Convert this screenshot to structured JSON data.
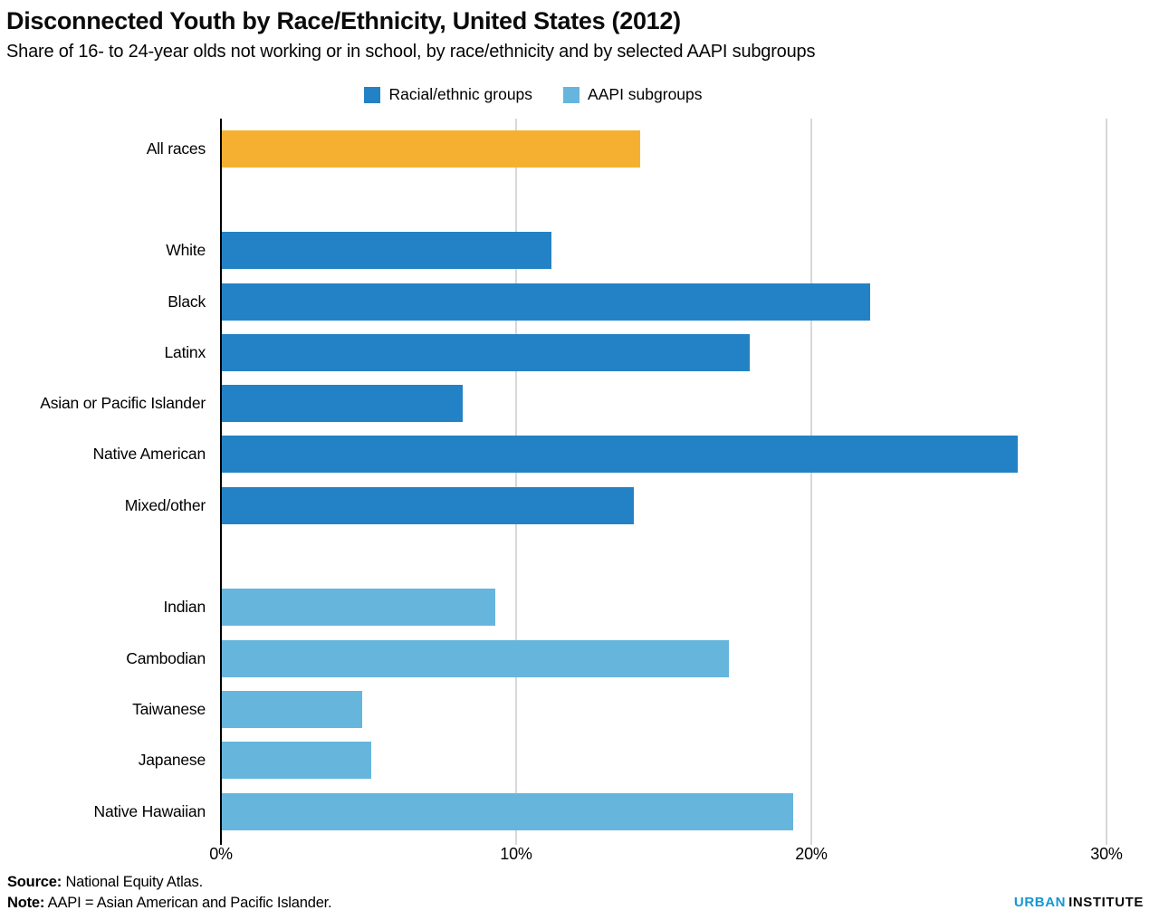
{
  "chart_data": {
    "type": "bar",
    "orientation": "horizontal",
    "title": "Disconnected Youth by Race/Ethnicity, United States (2012)",
    "subtitle": "Share of 16- to 24-year olds not working or in school, by race/ethnicity and by selected AAPI subgroups",
    "xlabel": "",
    "ylabel": "",
    "value_unit": "%",
    "xlim": [
      0,
      30.5
    ],
    "grid": true,
    "x_ticks": [
      {
        "label": "0%",
        "value": 0
      },
      {
        "label": "10%",
        "value": 10
      },
      {
        "label": "20%",
        "value": 20
      },
      {
        "label": "30%",
        "value": 30
      }
    ],
    "legend": {
      "position": "top-center",
      "entries": [
        {
          "label": "Racial/ethnic groups",
          "color": "#2382c5"
        },
        {
          "label": "AAPI subgroups",
          "color": "#66b5dd"
        }
      ]
    },
    "colors": {
      "all": "#f6b031",
      "racial": "#2382c5",
      "aapi": "#66b5dd"
    },
    "rows": [
      {
        "label": "All races",
        "value": 14.2,
        "group": "all",
        "gap_before": false
      },
      {
        "label": "White",
        "value": 11.2,
        "group": "racial",
        "gap_before": true
      },
      {
        "label": "Black",
        "value": 22.0,
        "group": "racial",
        "gap_before": false
      },
      {
        "label": "Latinx",
        "value": 17.9,
        "group": "racial",
        "gap_before": false
      },
      {
        "label": "Asian or Pacific Islander",
        "value": 8.2,
        "group": "racial",
        "gap_before": false
      },
      {
        "label": "Native American",
        "value": 27.0,
        "group": "racial",
        "gap_before": false
      },
      {
        "label": "Mixed/other",
        "value": 14.0,
        "group": "racial",
        "gap_before": false
      },
      {
        "label": "Indian",
        "value": 9.3,
        "group": "aapi",
        "gap_before": true
      },
      {
        "label": "Cambodian",
        "value": 17.2,
        "group": "aapi",
        "gap_before": false
      },
      {
        "label": "Taiwanese",
        "value": 4.8,
        "group": "aapi",
        "gap_before": false
      },
      {
        "label": "Japanese",
        "value": 5.1,
        "group": "aapi",
        "gap_before": false
      },
      {
        "label": "Native Hawaiian",
        "value": 19.4,
        "group": "aapi",
        "gap_before": false
      }
    ],
    "axis_color": "#000000",
    "gridline_color": "#d8d8d8"
  },
  "footer": {
    "source_label": "Source:",
    "source_text": "National Equity Atlas.",
    "note_label": "Note:",
    "note_text": "AAPI = Asian American and Pacific Islander.",
    "logo": {
      "urban": "URBAN",
      "institute": "INSTITUTE",
      "urban_color": "#1696d2"
    }
  }
}
